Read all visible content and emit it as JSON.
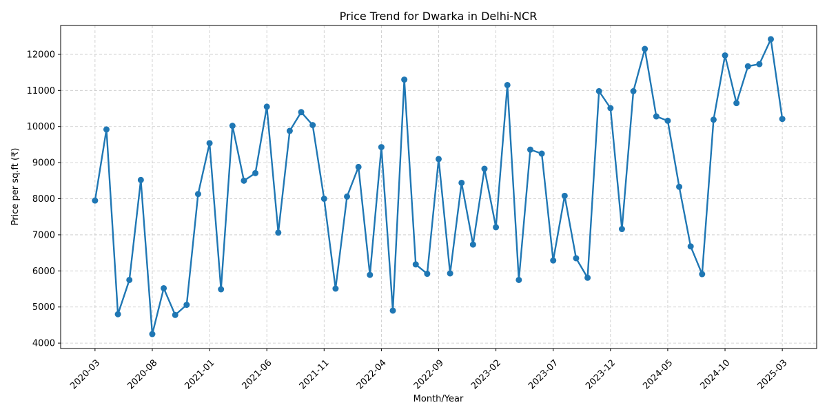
{
  "chart_data": {
    "type": "line",
    "title": "Price Trend for Dwarka in Delhi-NCR",
    "xlabel": "Month/Year",
    "ylabel": "Price per sq.ft (₹)",
    "x_tick_labels": [
      "2020-03",
      "2020-08",
      "2021-01",
      "2021-06",
      "2021-11",
      "2022-04",
      "2022-09",
      "2023-02",
      "2023-07",
      "2023-12",
      "2024-05",
      "2024-10",
      "2025-03"
    ],
    "y_ticks": [
      4000,
      5000,
      6000,
      7000,
      8000,
      9000,
      10000,
      11000,
      12000
    ],
    "ylim": [
      3850,
      12800
    ],
    "grid": true,
    "line_color": "#1f77b4",
    "series": [
      {
        "name": "",
        "x": [
          "2020-03",
          "2020-04",
          "2020-05",
          "2020-06",
          "2020-07",
          "2020-08",
          "2020-09",
          "2020-10",
          "2020-11",
          "2020-12",
          "2021-01",
          "2021-02",
          "2021-03",
          "2021-04",
          "2021-05",
          "2021-06",
          "2021-07",
          "2021-08",
          "2021-09",
          "2021-10",
          "2021-11",
          "2021-12",
          "2022-01",
          "2022-02",
          "2022-03",
          "2022-04",
          "2022-05",
          "2022-06",
          "2022-07",
          "2022-08",
          "2022-09",
          "2022-10",
          "2022-11",
          "2022-12",
          "2023-01",
          "2023-02",
          "2023-03",
          "2023-04",
          "2023-05",
          "2023-06",
          "2023-07",
          "2023-08",
          "2023-09",
          "2023-10",
          "2023-11",
          "2023-12",
          "2024-01",
          "2024-02",
          "2024-03",
          "2024-04",
          "2024-05",
          "2024-06",
          "2024-07",
          "2024-08",
          "2024-09",
          "2024-10",
          "2024-11",
          "2024-12",
          "2025-01",
          "2025-02",
          "2025-03"
        ],
        "values": [
          7950,
          9920,
          4800,
          5750,
          8520,
          4250,
          5520,
          4780,
          5060,
          8130,
          9540,
          5490,
          10020,
          8500,
          8710,
          10550,
          7060,
          9880,
          10400,
          10040,
          8000,
          5510,
          8060,
          8880,
          5890,
          9430,
          4900,
          11300,
          6180,
          5920,
          9100,
          5930,
          8440,
          6730,
          8830,
          7210,
          11150,
          5750,
          9360,
          9250,
          6290,
          8080,
          6350,
          5810,
          10980,
          10510,
          7160,
          10980,
          12150,
          10280,
          10160,
          8330,
          6680,
          5910,
          10190,
          11970,
          10650,
          11670,
          11730,
          12420,
          10210
        ]
      }
    ]
  }
}
